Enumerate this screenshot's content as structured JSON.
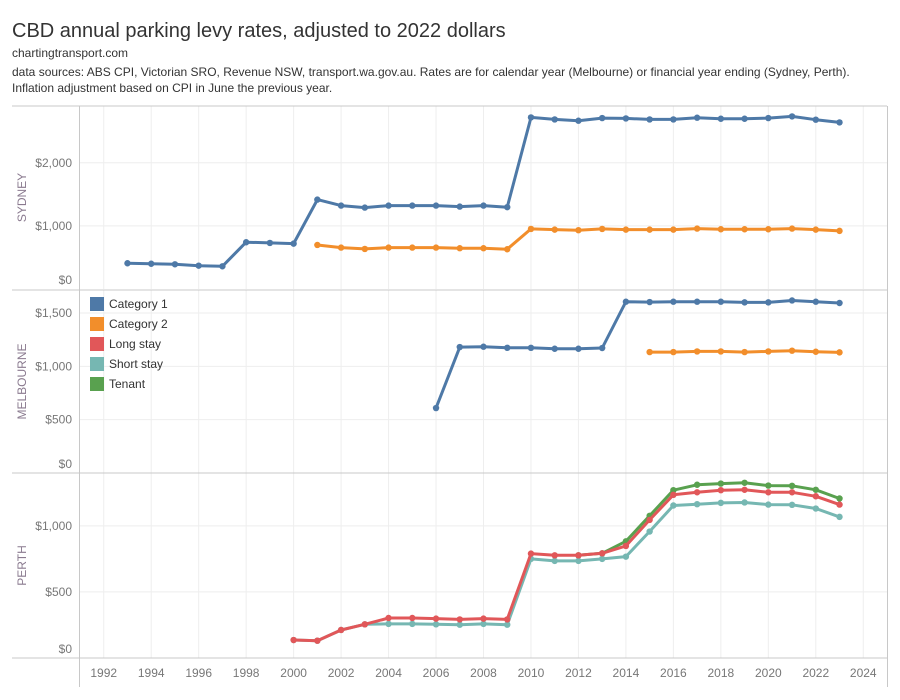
{
  "header": {
    "title": "CBD annual parking levy rates, adjusted to 2022 dollars",
    "site": "chartingtransport.com",
    "sources": "data sources: ABS CPI, Victorian SRO, Revenue NSW, transport.wa.gov.au. Rates are for calendar year (Melbourne) or financial year ending (Sydney, Perth). Inflation adjustment based on CPI in June the previous year."
  },
  "chart_data": {
    "type": "line",
    "title": "CBD annual parking levy rates, adjusted to 2022 dollars",
    "xlabel": "",
    "xlim": [
      1991,
      2025
    ],
    "x_ticks": [
      1992,
      1994,
      1996,
      1998,
      2000,
      2002,
      2004,
      2006,
      2008,
      2010,
      2012,
      2014,
      2016,
      2018,
      2020,
      2022,
      2024
    ],
    "grid": true,
    "legend_placement": "top-left of middle panel",
    "legend": [
      {
        "name": "Category 1",
        "color": "#4e79a7"
      },
      {
        "name": "Category 2",
        "color": "#f28e2b"
      },
      {
        "name": "Long stay",
        "color": "#e15759"
      },
      {
        "name": "Short stay",
        "color": "#76b7b2"
      },
      {
        "name": "Tenant",
        "color": "#59a14f"
      }
    ],
    "panels": [
      {
        "label": "SYDNEY",
        "ylim": [
          0,
          2900
        ],
        "y_ticks": [
          0,
          1000,
          2000
        ],
        "y_tick_labels": [
          "$0",
          "$1,000",
          "$2,000"
        ],
        "series": [
          {
            "name": "Category 1",
            "color": "#4e79a7",
            "x": [
              1993,
              1994,
              1995,
              1996,
              1997,
              1998,
              1999,
              2000,
              2001,
              2002,
              2003,
              2004,
              2005,
              2006,
              2007,
              2008,
              2009,
              2010,
              2011,
              2012,
              2013,
              2014,
              2015,
              2016,
              2017,
              2018,
              2019,
              2020,
              2021,
              2022,
              2023
            ],
            "values": [
              408,
              400,
              392,
              370,
              360,
              741,
              730,
              719,
              1417,
              1322,
              1290,
              1322,
              1322,
              1322,
              1306,
              1322,
              1297,
              2719,
              2687,
              2667,
              2709,
              2703,
              2687,
              2687,
              2714,
              2698,
              2698,
              2709,
              2735,
              2683,
              2640
            ]
          },
          {
            "name": "Category 2",
            "color": "#f28e2b",
            "x": [
              2001,
              2002,
              2003,
              2004,
              2005,
              2006,
              2007,
              2008,
              2009,
              2010,
              2011,
              2012,
              2013,
              2014,
              2015,
              2016,
              2017,
              2018,
              2019,
              2020,
              2021,
              2022,
              2023
            ],
            "values": [
              698,
              656,
              635,
              656,
              656,
              656,
              646,
              646,
              630,
              952,
              941,
              932,
              952,
              941,
              941,
              941,
              957,
              947,
              947,
              947,
              957,
              941,
              921
            ]
          }
        ]
      },
      {
        "label": "MELBOURNE",
        "ylim": [
          0,
          1716
        ],
        "y_ticks": [
          0,
          500,
          1000,
          1500
        ],
        "y_tick_labels": [
          "$0",
          "$500",
          "$1,000",
          "$1,500"
        ],
        "series": [
          {
            "name": "Category 1",
            "color": "#4e79a7",
            "x": [
              2006,
              2007,
              2008,
              2009,
              2010,
              2011,
              2012,
              2013,
              2014,
              2015,
              2016,
              2017,
              2018,
              2019,
              2020,
              2021,
              2022,
              2023
            ],
            "values": [
              609,
              1181,
              1184,
              1174,
              1174,
              1165,
              1165,
              1172,
              1606,
              1603,
              1606,
              1606,
              1606,
              1600,
              1600,
              1618,
              1606,
              1594
            ]
          },
          {
            "name": "Category 2",
            "color": "#f28e2b",
            "x": [
              2015,
              2016,
              2017,
              2018,
              2019,
              2020,
              2021,
              2022,
              2023
            ],
            "values": [
              1134,
              1134,
              1140,
              1140,
              1134,
              1140,
              1147,
              1137,
              1131
            ]
          }
        ]
      },
      {
        "label": "PERTH",
        "ylim": [
          0,
          1400
        ],
        "y_ticks": [
          0,
          500,
          1000
        ],
        "y_tick_labels": [
          "$0",
          "$500",
          "$1,000"
        ],
        "series": [
          {
            "name": "Tenant",
            "color": "#59a14f",
            "x": [
              2012,
              2013,
              2014,
              2015,
              2016,
              2017,
              2018,
              2019,
              2020,
              2021,
              2022,
              2023
            ],
            "values": [
              777,
              792,
              883,
              1076,
              1270,
              1311,
              1320,
              1326,
              1305,
              1303,
              1273,
              1207
            ]
          },
          {
            "name": "Short stay",
            "color": "#76b7b2",
            "x": [
              2000,
              2001,
              2002,
              2003,
              2004,
              2005,
              2006,
              2007,
              2008,
              2009,
              2010,
              2011,
              2012,
              2013,
              2014,
              2015,
              2016,
              2017,
              2018,
              2019,
              2020,
              2021,
              2022,
              2023
            ],
            "values": [
              136,
              131,
              212,
              255,
              258,
              258,
              255,
              252,
              258,
              252,
              750,
              735,
              735,
              750,
              767,
              957,
              1154,
              1164,
              1174,
              1177,
              1161,
              1159,
              1131,
              1068
            ]
          },
          {
            "name": "Long stay",
            "color": "#e15759",
            "x": [
              2000,
              2001,
              2002,
              2003,
              2004,
              2005,
              2006,
              2007,
              2008,
              2009,
              2010,
              2011,
              2012,
              2013,
              2014,
              2015,
              2016,
              2017,
              2018,
              2019,
              2020,
              2021,
              2022,
              2023
            ],
            "values": [
              136,
              131,
              212,
              255,
              303,
              303,
              298,
              292,
              298,
              292,
              790,
              777,
              777,
              792,
              848,
              1045,
              1235,
              1254,
              1270,
              1273,
              1254,
              1254,
              1224,
              1161
            ]
          }
        ]
      }
    ]
  }
}
